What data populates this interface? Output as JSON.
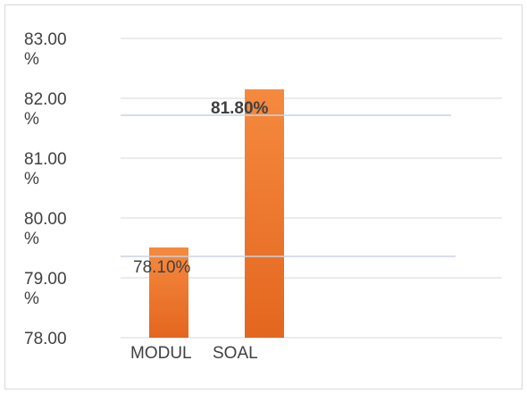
{
  "chart_data": {
    "type": "bar",
    "categories": [
      "MODUL",
      "SOAL"
    ],
    "values": [
      78.1,
      81.8
    ],
    "data_labels": [
      "78.10%",
      "81.80%"
    ],
    "y_ticks": [
      {
        "value": 83,
        "line1": "83.00",
        "line2": "%"
      },
      {
        "value": 82,
        "line1": "82.00",
        "line2": "%"
      },
      {
        "value": 81,
        "line1": "81.00",
        "line2": "%"
      },
      {
        "value": 80,
        "line1": "80.00",
        "line2": "%"
      },
      {
        "value": 79,
        "line1": "79.00",
        "line2": "%"
      },
      {
        "value": 78,
        "line1": "78.00",
        "line2": ""
      }
    ],
    "ylim": [
      78,
      83
    ],
    "grid": true,
    "legend": "none",
    "bar_color_top": "#f58a3f",
    "bar_color_bottom": "#e4661f",
    "grid_color": "#d9d9d9"
  }
}
